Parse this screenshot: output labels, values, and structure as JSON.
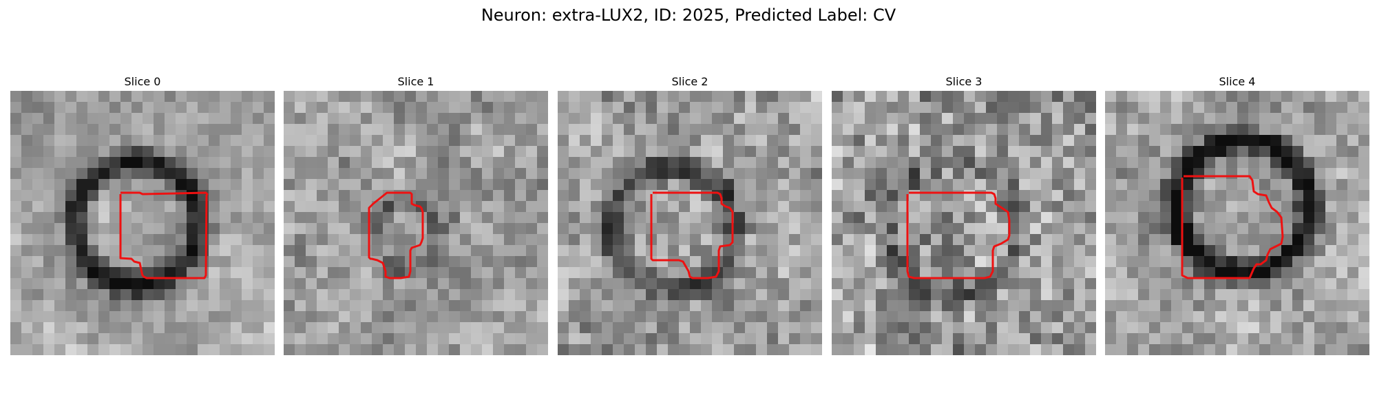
{
  "figure": {
    "title": "Neuron: extra-LUX2, ID: 2025, Predicted Label: CV",
    "outline_color": "#ee1111"
  },
  "panels": [
    {
      "title": "Slice 0"
    },
    {
      "title": "Slice 1"
    },
    {
      "title": "Slice 2"
    },
    {
      "title": "Slice 3"
    },
    {
      "title": "Slice 4"
    }
  ]
}
